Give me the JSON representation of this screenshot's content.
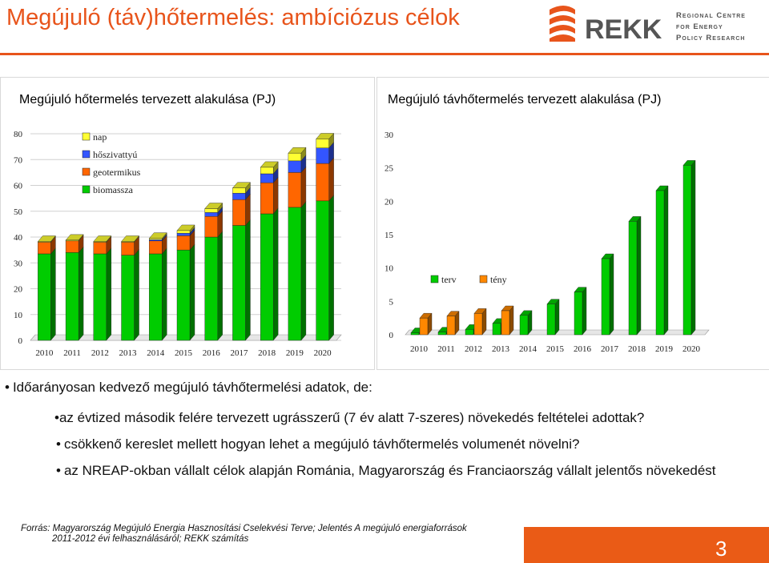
{
  "slide": {
    "title": "Megújuló (táv)hőtermelés: ambíciózus célok",
    "page_number": "3",
    "accent_color": "#e8541b"
  },
  "logo": {
    "text": "REKK",
    "tagline": [
      "Regional Centre",
      "for Energy",
      "Policy Research"
    ]
  },
  "chart_left_title": "Megújuló hőtermelés tervezett alakulása (PJ)",
  "chart_right_title": "Megújuló távhőtermelés tervezett alakulása (PJ)",
  "chart_data": [
    {
      "type": "bar",
      "stacked": true,
      "title": "Megújuló hőtermelés tervezett alakulása (PJ)",
      "categories": [
        "2010",
        "2011",
        "2012",
        "2013",
        "2014",
        "2015",
        "2016",
        "2017",
        "2018",
        "2019",
        "2020"
      ],
      "ylim": [
        0,
        80
      ],
      "yticks": [
        0,
        10,
        20,
        30,
        40,
        50,
        60,
        70,
        80
      ],
      "legend_position": "top-left",
      "series": [
        {
          "name": "biomassza",
          "color": "#00cc00",
          "values": [
            33.5,
            34,
            33.5,
            33,
            33.5,
            35,
            40,
            44.5,
            49,
            51.5,
            54
          ]
        },
        {
          "name": "geotermikus",
          "color": "#ff6600",
          "values": [
            4.5,
            4.5,
            4.5,
            5,
            5,
            5.5,
            8,
            10,
            12,
            13.5,
            14.5
          ]
        },
        {
          "name": "hőszivattyú",
          "color": "#3355ff",
          "values": [
            0,
            0,
            0,
            0,
            0.5,
            1,
            1.5,
            2.5,
            3.5,
            4.5,
            6
          ]
        },
        {
          "name": "nap",
          "color": "#ffff33",
          "values": [
            0.3,
            0.3,
            0.3,
            0.3,
            0.5,
            1,
            1.5,
            2,
            2.5,
            3,
            3.5
          ]
        }
      ]
    },
    {
      "type": "bar",
      "title": "Megújuló távhőtermelés tervezett alakulása (PJ)",
      "categories": [
        "2010",
        "2011",
        "2012",
        "2013",
        "2014",
        "2015",
        "2016",
        "2017",
        "2018",
        "2019",
        "2020"
      ],
      "ylim": [
        0,
        30
      ],
      "yticks": [
        0,
        5,
        10,
        15,
        20,
        25,
        30
      ],
      "legend_position": "center-left",
      "series": [
        {
          "name": "terv",
          "color": "#00cc00",
          "values": [
            0.3,
            0.4,
            0.8,
            1.7,
            2.9,
            4.6,
            6.4,
            11.4,
            17,
            21.6,
            25.4
          ]
        },
        {
          "name": "tény",
          "color": "#ff8800",
          "values": [
            2.5,
            2.8,
            3.2,
            3.6,
            null,
            null,
            null,
            null,
            null,
            null,
            null
          ]
        }
      ]
    }
  ],
  "bullets": {
    "main": "Időarányosan kedvező megújuló távhőtermelési adatok, de:",
    "sub": [
      "az évtized második felére tervezett ugrásszerű (7 év alatt 7-szeres) növekedés feltételei adottak?",
      "csökkenő kereslet mellett hogyan lehet a megújuló távhőtermelés volumenét növelni?",
      "az NREAP-okban vállalt célok alapján Románia, Magyarország és Franciaország vállalt jelentős növekedést"
    ]
  },
  "source": [
    "Forrás: Magyarország Megújuló Energia Hasznosítási Cselekvési Terve; Jelentés A megújuló energiaforrások",
    "2011-2012 évi felhasználásáról; REKK számítás"
  ]
}
